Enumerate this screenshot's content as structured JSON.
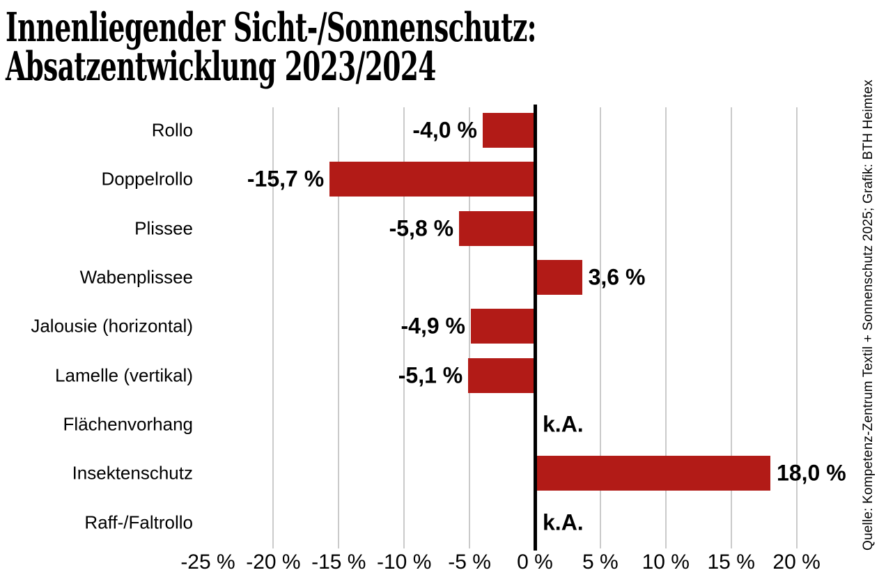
{
  "chart_data": {
    "type": "bar",
    "orientation": "horizontal",
    "title_lines": [
      "Innenliegender Sicht-/Sonnenschutz:",
      "Absatzentwicklung 2023/2024"
    ],
    "source_note": "Quelle: Kompetenz-Zentrum Textil + Sonnenschutz 2025; Grafik: BTH Heimtex",
    "categories": [
      "Rollo",
      "Doppelrollo",
      "Plissee",
      "Wabenplissee",
      "Jalousie (horizontal)",
      "Lamelle (vertikal)",
      "Flächenvorhang",
      "Insektenschutz",
      "Raff-/Faltrollo"
    ],
    "values": [
      -4.0,
      -15.7,
      -5.8,
      3.6,
      -4.9,
      -5.1,
      null,
      18.0,
      null
    ],
    "value_labels": [
      "-4,0 %",
      "-15,7 %",
      "-5,8 %",
      "3,6 %",
      "-4,9 %",
      "-5,1 %",
      "k.A.",
      "18,0 %",
      "k.A."
    ],
    "no_data_label": "k.A.",
    "x_axis": {
      "tick_values": [
        -25,
        -20,
        -15,
        -10,
        -5,
        0,
        5,
        10,
        15,
        20
      ],
      "tick_labels": [
        "-25 %",
        "-20 %",
        "-15 %",
        "-10 %",
        "-5 %",
        "0 %",
        "5 %",
        "10 %",
        "15 %",
        "20 %"
      ],
      "gridline_values": [
        -20,
        -15,
        -10,
        -5,
        5,
        10,
        15,
        20
      ],
      "zero_line_value": 0,
      "xlim": [
        -27.5,
        22.5
      ],
      "tick_step": 5,
      "unit": "%"
    },
    "ylabel": "",
    "xlabel": "",
    "grid": "vertical-gridlines",
    "legend": "none",
    "colors": {
      "bar": "#b21b17",
      "gridline": "#cacaca",
      "zero_axis": "#000000",
      "text": "#000000",
      "background": "#ffffff"
    }
  }
}
